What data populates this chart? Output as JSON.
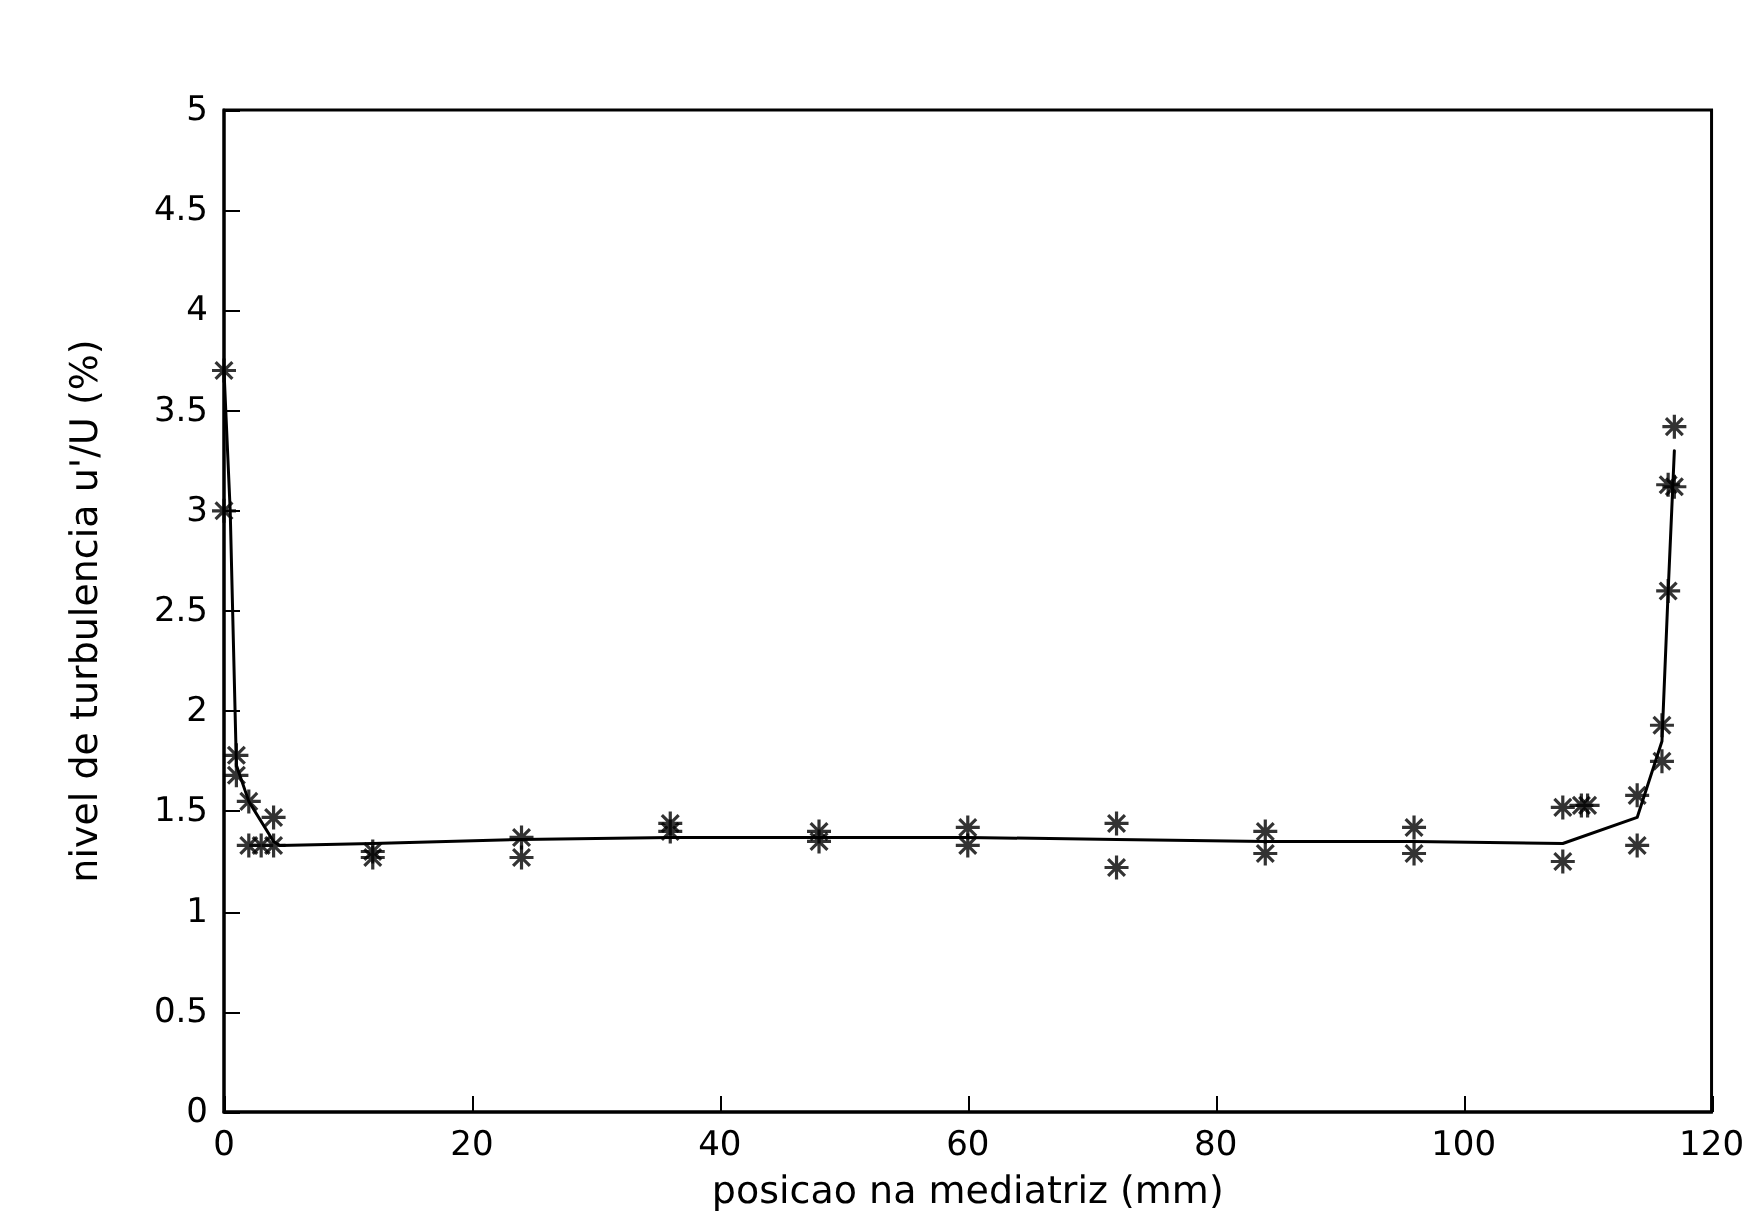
{
  "chart_data": {
    "type": "scatter",
    "xlabel": "posicao na mediatriz (mm)",
    "ylabel": "nivel de turbulencia u'/U (%)",
    "xlim": [
      0,
      120
    ],
    "xticks": [
      0,
      20,
      40,
      60,
      80,
      100,
      120
    ],
    "ylim": [
      0,
      5
    ],
    "yticks": [
      0,
      0.5,
      1,
      1.5,
      2,
      2.5,
      3,
      3.5,
      4,
      4.5,
      5
    ],
    "grid": false,
    "marker": "cross",
    "series": [
      {
        "color": "#000000",
        "x": [
          0,
          0,
          1,
          1,
          2,
          2,
          3,
          4,
          4,
          12,
          12,
          24,
          24,
          36,
          36,
          48,
          48,
          60,
          60,
          72,
          72,
          84,
          84,
          96,
          96,
          108,
          108,
          109.5,
          110,
          114,
          114,
          116,
          116,
          116.5,
          116.5,
          117,
          117
        ],
        "values": [
          3.7,
          3.0,
          1.78,
          1.68,
          1.55,
          1.33,
          1.33,
          1.47,
          1.33,
          1.3,
          1.27,
          1.37,
          1.27,
          1.44,
          1.4,
          1.4,
          1.35,
          1.42,
          1.33,
          1.44,
          1.22,
          1.4,
          1.29,
          1.42,
          1.29,
          1.52,
          1.25,
          1.53,
          1.53,
          1.58,
          1.33,
          1.93,
          1.75,
          2.6,
          3.13,
          3.12,
          3.42
        ]
      },
      {
        "type": "line",
        "color": "#000000",
        "marker": "none",
        "line_style": "solid",
        "x": [
          0,
          0.5,
          1,
          2,
          4,
          4.5,
          12,
          24,
          36,
          48,
          60,
          72,
          84,
          96,
          108,
          114,
          116,
          116.5,
          117
        ],
        "values": [
          3.7,
          3.0,
          1.73,
          1.55,
          1.35,
          1.33,
          1.34,
          1.36,
          1.37,
          1.37,
          1.37,
          1.36,
          1.35,
          1.35,
          1.34,
          1.47,
          1.85,
          2.6,
          3.3
        ]
      }
    ]
  }
}
